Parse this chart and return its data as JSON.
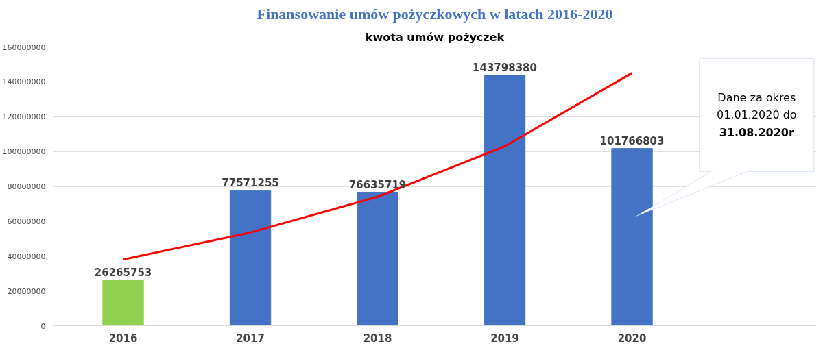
{
  "chart_data": {
    "type": "bar",
    "title": "Finansowanie umów pożyczkowych w latach 2016-2020",
    "subtitle": "kwota umów pożyczek",
    "categories": [
      "2016",
      "2017",
      "2018",
      "2019",
      "2020"
    ],
    "series": [
      {
        "colors": [
          "#92d050",
          "#4472c4",
          "#4472c4",
          "#4472c4",
          "#4472c4"
        ],
        "values": [
          26265753,
          77571255,
          76635719,
          143798380,
          101766803
        ],
        "value_labels": [
          "26265753",
          "77571255",
          "76635719",
          "143798380",
          "101766803"
        ]
      },
      {
        "type": "line",
        "color": "#ff0000",
        "values": [
          38000000,
          53500000,
          74000000,
          103000000,
          145000000
        ]
      }
    ],
    "ylim": [
      0,
      160000000
    ],
    "yticks": [
      0,
      20000000,
      40000000,
      60000000,
      80000000,
      100000000,
      120000000,
      140000000,
      160000000
    ],
    "grid": "y",
    "annotations": [
      "Dane za okres\n01.01.2020 do\n31.08.2020r"
    ]
  }
}
